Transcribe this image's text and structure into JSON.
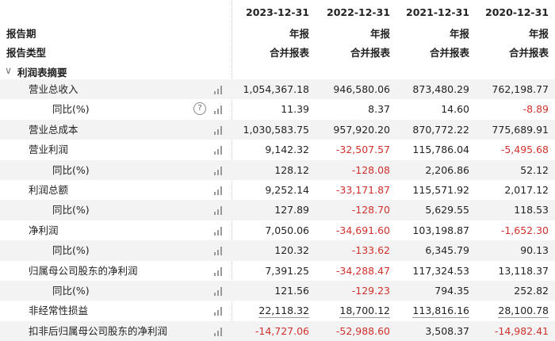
{
  "header": {
    "period_label": "报告期",
    "type_label": "报告类型",
    "section_label": "利润表摘要",
    "columns": [
      {
        "date": "2023-12-31",
        "period": "年报",
        "type": "合并报表"
      },
      {
        "date": "2022-12-31",
        "period": "年报",
        "type": "合并报表"
      },
      {
        "date": "2021-12-31",
        "period": "年报",
        "type": "合并报表"
      },
      {
        "date": "2020-12-31",
        "period": "年报",
        "type": "合并报表"
      }
    ]
  },
  "colors": {
    "negative": "#d0312d",
    "stripe": "#f3f3f3"
  },
  "rows": [
    {
      "label": "营业总收入",
      "indent": 1,
      "values": [
        "1,054,367.18",
        "946,580.06",
        "873,480.29",
        "762,198.77"
      ]
    },
    {
      "label": "同比(%)",
      "indent": 2,
      "help": "?",
      "values": [
        "11.39",
        "8.37",
        "14.60",
        "-8.89"
      ]
    },
    {
      "label": "营业总成本",
      "indent": 1,
      "values": [
        "1,030,583.75",
        "957,920.20",
        "870,772.22",
        "775,689.91"
      ]
    },
    {
      "label": "营业利润",
      "indent": 1,
      "values": [
        "9,142.32",
        "-32,507.57",
        "115,786.04",
        "-5,495.68"
      ]
    },
    {
      "label": "同比(%)",
      "indent": 2,
      "values": [
        "128.12",
        "-128.08",
        "2,206.86",
        "52.12"
      ]
    },
    {
      "label": "利润总额",
      "indent": 1,
      "values": [
        "9,252.14",
        "-33,171.87",
        "115,571.92",
        "2,017.12"
      ]
    },
    {
      "label": "同比(%)",
      "indent": 2,
      "values": [
        "127.89",
        "-128.70",
        "5,629.55",
        "118.53"
      ]
    },
    {
      "label": "净利润",
      "indent": 1,
      "values": [
        "7,050.06",
        "-34,691.60",
        "103,198.87",
        "-1,652.30"
      ]
    },
    {
      "label": "同比(%)",
      "indent": 2,
      "values": [
        "120.32",
        "-133.62",
        "6,345.79",
        "90.13"
      ]
    },
    {
      "label": "归属母公司股东的净利润",
      "indent": 1,
      "values": [
        "7,391.25",
        "-34,288.47",
        "117,324.53",
        "13,118.37"
      ]
    },
    {
      "label": "同比(%)",
      "indent": 2,
      "values": [
        "121.56",
        "-129.23",
        "794.35",
        "252.82"
      ]
    },
    {
      "label": "非经常性损益",
      "indent": 1,
      "underline": true,
      "values": [
        "22,118.32",
        "18,700.12",
        "113,816.16",
        "28,100.78"
      ]
    },
    {
      "label": "扣非后归属母公司股东的净利润",
      "indent": 1,
      "values": [
        "-14,727.06",
        "-52,988.60",
        "3,508.37",
        "-14,982.41"
      ]
    }
  ]
}
